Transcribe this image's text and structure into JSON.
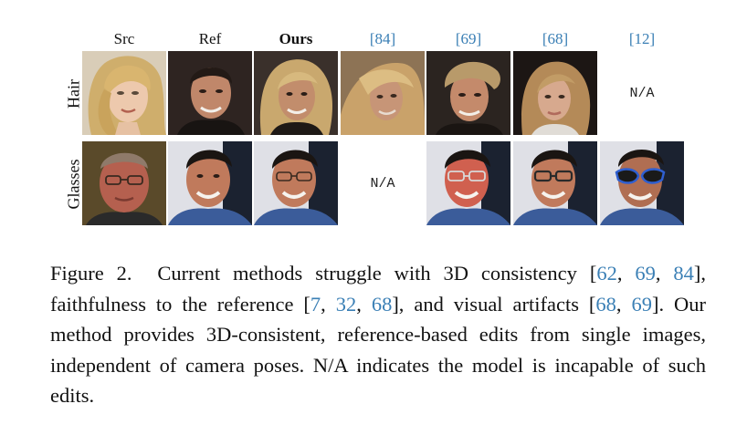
{
  "figure": {
    "columns": [
      {
        "label": "Src",
        "style": "plain"
      },
      {
        "label": "Ref",
        "style": "plain"
      },
      {
        "label": "Ours",
        "style": "bold"
      },
      {
        "label": "[84]",
        "style": "cite"
      },
      {
        "label": "[69]",
        "style": "cite"
      },
      {
        "label": "[68]",
        "style": "cite"
      },
      {
        "label": "[12]",
        "style": "cite"
      }
    ],
    "rows": [
      {
        "label": "Hair"
      },
      {
        "label": "Glasses"
      }
    ],
    "na_text": "N/A"
  },
  "caption": {
    "figure_label": "Figure 2.",
    "t1": "Current methods struggle with 3D consistency [",
    "c62": "62",
    "t2": ", ",
    "c69a": "69",
    "t3": ", ",
    "c84": "84",
    "t4": "], faithfulness to the reference [",
    "c7": "7",
    "t5": ", ",
    "c32": "32",
    "t6": ", ",
    "c68a": "68",
    "t7": "], and visual artifacts [",
    "c68b": "68",
    "t8": ", ",
    "c69b": "69",
    "t9": "].  Our method provides 3D-consistent, reference-based edits from single images, independent of camera poses. N/A indicates the model is incapable of such edits."
  }
}
